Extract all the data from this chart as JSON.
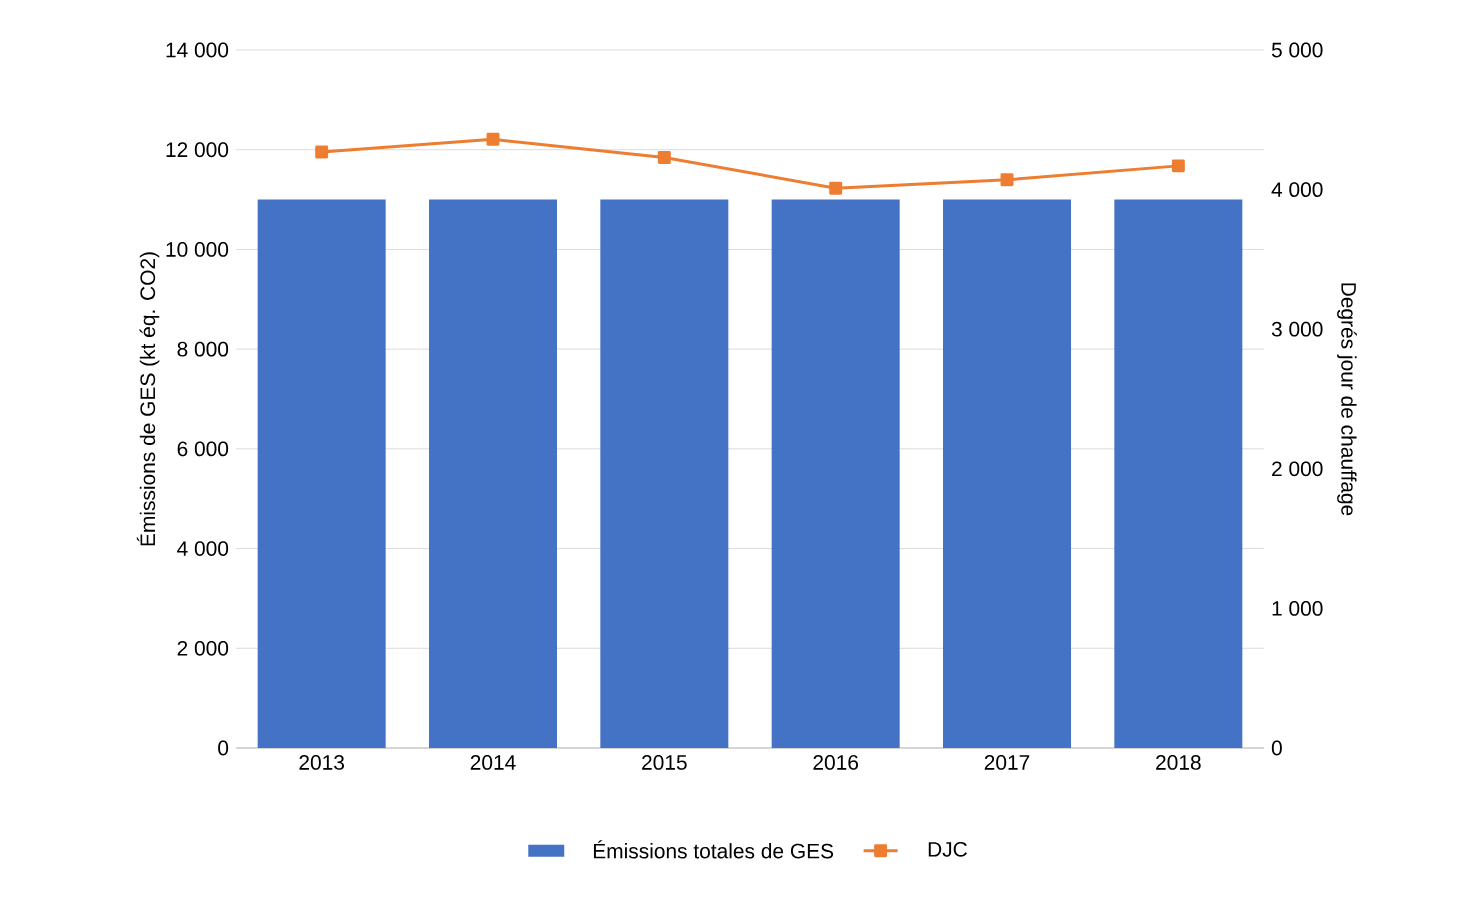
{
  "chart_data": {
    "type": "bar",
    "categories": [
      "2013",
      "2014",
      "2015",
      "2016",
      "2017",
      "2018"
    ],
    "series": [
      {
        "name": "Émissions totales de GES",
        "color": "#4472c4",
        "values": [
          11000,
          11000,
          11000,
          11000,
          11000,
          11000
        ]
      },
      {
        "name": "DJC",
        "type": "line",
        "axis": "y2",
        "marker": "square",
        "color": "#ed7d31",
        "values": [
          4270,
          4360,
          4230,
          4010,
          4070,
          4170
        ]
      }
    ],
    "ylabel": "Émissions de GES (kt éq. CO2)",
    "y2label": "Degrés jour de chauffage",
    "ylim": [
      0,
      14000
    ],
    "yticks": [
      {
        "value": 0,
        "label": "0"
      },
      {
        "value": 2000,
        "label": "2 000"
      },
      {
        "value": 4000,
        "label": "4 000"
      },
      {
        "value": 6000,
        "label": "6 000"
      },
      {
        "value": 8000,
        "label": "8 000"
      },
      {
        "value": 10000,
        "label": "10 000"
      },
      {
        "value": 12000,
        "label": "12 000"
      },
      {
        "value": 14000,
        "label": "14 000"
      }
    ],
    "y2lim": [
      0,
      5000
    ],
    "y2ticks": [
      {
        "value": 0,
        "label": "0"
      },
      {
        "value": 1000,
        "label": "1 000"
      },
      {
        "value": 2000,
        "label": "2 000"
      },
      {
        "value": 3000,
        "label": "3 000"
      },
      {
        "value": 4000,
        "label": "4 000"
      },
      {
        "value": 5000,
        "label": "5 000"
      }
    ],
    "grid": "y",
    "legend": "bottom"
  }
}
